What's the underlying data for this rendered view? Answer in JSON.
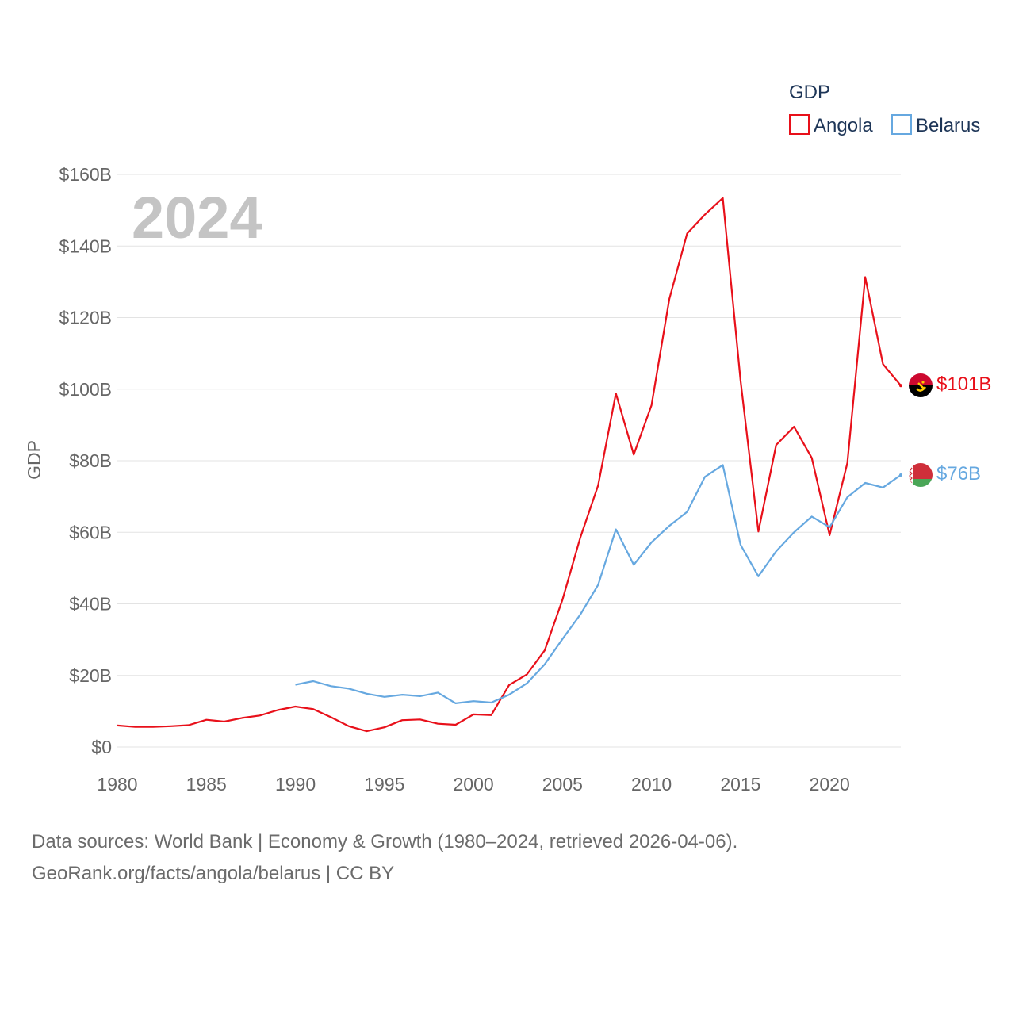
{
  "chart_data": {
    "type": "line",
    "title": "GDP",
    "year_label": "2024",
    "ylabel": "GDP",
    "xlabel": "",
    "xlim": [
      1980,
      2024
    ],
    "ylim": [
      0,
      160
    ],
    "y_unit": "billion USD",
    "x_ticks": [
      1980,
      1985,
      1990,
      1995,
      2000,
      2005,
      2010,
      2015,
      2020
    ],
    "y_ticks": [
      0,
      20,
      40,
      60,
      80,
      100,
      120,
      140,
      160
    ],
    "y_tick_labels": [
      "$0",
      "$20B",
      "$40B",
      "$60B",
      "$80B",
      "$100B",
      "$120B",
      "$140B",
      "$160B"
    ],
    "legend_position": "top-right",
    "series": [
      {
        "name": "Angola",
        "color": "#e8101a",
        "end_label": "$101B",
        "flag": "angola-flag",
        "x": [
          1980,
          1981,
          1982,
          1983,
          1984,
          1985,
          1986,
          1987,
          1988,
          1989,
          1990,
          1991,
          1992,
          1993,
          1994,
          1995,
          1996,
          1997,
          1998,
          1999,
          2000,
          2001,
          2002,
          2003,
          2004,
          2005,
          2006,
          2007,
          2008,
          2009,
          2010,
          2011,
          2012,
          2013,
          2014,
          2015,
          2016,
          2017,
          2018,
          2019,
          2020,
          2021,
          2022,
          2023,
          2024
        ],
        "values": [
          6.0,
          5.6,
          5.6,
          5.8,
          6.1,
          7.6,
          7.1,
          8.1,
          8.8,
          10.3,
          11.3,
          10.6,
          8.3,
          5.8,
          4.4,
          5.5,
          7.5,
          7.7,
          6.5,
          6.2,
          9.1,
          8.9,
          17.3,
          20.3,
          27.0,
          41.2,
          58.5,
          73.1,
          98.8,
          81.7,
          95.5,
          125.2,
          143.5,
          148.8,
          153.4,
          102.4,
          60.2,
          84.4,
          89.5,
          80.8,
          59.2,
          79.4,
          131.3,
          107.0,
          101.0
        ]
      },
      {
        "name": "Belarus",
        "color": "#66a8e0",
        "end_label": "$76B",
        "flag": "belarus-flag",
        "x": [
          1990,
          1991,
          1992,
          1993,
          1994,
          1995,
          1996,
          1997,
          1998,
          1999,
          2000,
          2001,
          2002,
          2003,
          2004,
          2005,
          2006,
          2007,
          2008,
          2009,
          2010,
          2011,
          2012,
          2013,
          2014,
          2015,
          2016,
          2017,
          2018,
          2019,
          2020,
          2021,
          2022,
          2023,
          2024
        ],
        "values": [
          17.4,
          18.4,
          17.0,
          16.3,
          14.9,
          14.0,
          14.6,
          14.2,
          15.2,
          12.2,
          12.8,
          12.4,
          14.6,
          17.8,
          23.1,
          30.2,
          37.0,
          45.3,
          60.8,
          50.9,
          57.2,
          61.8,
          65.7,
          75.5,
          78.8,
          56.5,
          47.7,
          54.7,
          60.0,
          64.4,
          61.4,
          69.8,
          73.8,
          72.5,
          76.0
        ]
      }
    ]
  },
  "footer": {
    "sources": "Data sources: World Bank | Economy & Growth (1980–2024, retrieved 2026-04-06).",
    "credit": "GeoRank.org/facts/angola/belarus | CC BY"
  }
}
